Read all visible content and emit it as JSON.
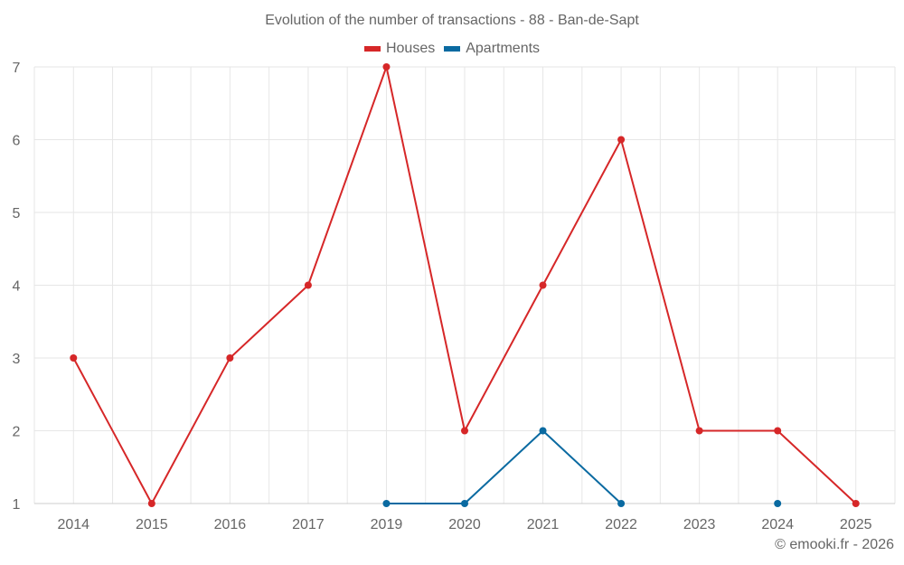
{
  "title": "Evolution of the number of transactions - 88 - Ban-de-Sapt",
  "legend": [
    {
      "label": "Houses",
      "color": "#d62728"
    },
    {
      "label": "Apartments",
      "color": "#0a6aa1"
    }
  ],
  "credit": "© emooki.fr - 2026",
  "chart_data": {
    "type": "line",
    "title": "Evolution of the number of transactions - 88 - Ban-de-Sapt",
    "xlabel": "",
    "ylabel": "",
    "categories": [
      "2014",
      "2015",
      "2016",
      "2017",
      "2019",
      "2020",
      "2021",
      "2022",
      "2023",
      "2024",
      "2025"
    ],
    "series": [
      {
        "name": "Houses",
        "color": "#d62728",
        "values": [
          3,
          1,
          3,
          4,
          7,
          2,
          4,
          6,
          2,
          2,
          1
        ]
      },
      {
        "name": "Apartments",
        "color": "#0a6aa1",
        "values": [
          null,
          null,
          null,
          null,
          1,
          1,
          2,
          1,
          null,
          1,
          null
        ]
      }
    ],
    "ylim": [
      1,
      7
    ],
    "yticks": [
      1,
      2,
      3,
      4,
      5,
      6,
      7
    ],
    "grid": true,
    "legend_position": "top"
  }
}
